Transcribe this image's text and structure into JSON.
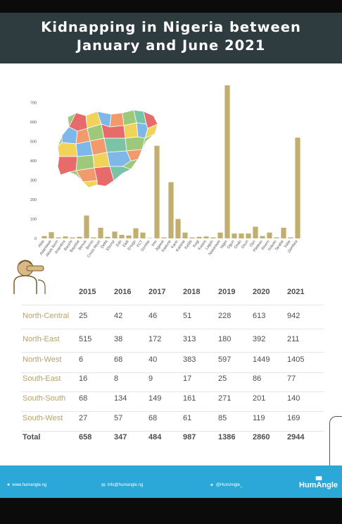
{
  "header": {
    "title_line1": "Kidnapping in Nigeria between",
    "title_line2": "January and June 2021"
  },
  "colors": {
    "bar": "#c2ae6e",
    "header_bg": "#2e3c40",
    "footer_bg": "#2ba8d8",
    "row_label": "#b8a26a"
  },
  "chart_data": {
    "type": "bar",
    "title": "",
    "xlabel": "",
    "ylabel": "",
    "ylim": [
      0,
      750
    ],
    "yticks": [
      0,
      100,
      200,
      300,
      400,
      500,
      600,
      700
    ],
    "categories": [
      "Abia",
      "Adamawa",
      "Akwa Ibom",
      "Anambra",
      "Bauchi",
      "Bayelsa",
      "Benue",
      "Borno",
      "Cross River",
      "Delta",
      "Ebonyi",
      "Edo",
      "Ekiti",
      "Enugu",
      "FCT",
      "Gombe",
      "Imo",
      "Jigawa",
      "Kaduna",
      "Kano",
      "Katsina",
      "Kebbi",
      "Kogi",
      "Kwara",
      "Lagos",
      "Nasarawa",
      "Niger",
      "Ogun",
      "Ondo",
      "Osun",
      "Oyo",
      "Plateau",
      "Rivers",
      "Sokoto",
      "Taraba",
      "Yobe",
      "Zamfara"
    ],
    "values": [
      12,
      32,
      5,
      10,
      5,
      8,
      118,
      5,
      55,
      8,
      35,
      18,
      15,
      52,
      30,
      2,
      478,
      5,
      290,
      100,
      30,
      5,
      8,
      10,
      5,
      30,
      790,
      25,
      25,
      25,
      60,
      12,
      30,
      5,
      55,
      5,
      520
    ],
    "grid": false,
    "legend": "none"
  },
  "table": {
    "years": [
      "2015",
      "2016",
      "2017",
      "2018",
      "2019",
      "2020",
      "2021"
    ],
    "rows": [
      {
        "label": "North-Central",
        "values": [
          "25",
          "42",
          "46",
          "51",
          "228",
          "613",
          "942"
        ]
      },
      {
        "label": "North-East",
        "values": [
          "515",
          "38",
          "172",
          "313",
          "180",
          "392",
          "211"
        ]
      },
      {
        "label": "North-West",
        "values": [
          "6",
          "68",
          "40",
          "383",
          "597",
          "1449",
          "1405"
        ]
      },
      {
        "label": "South-East",
        "values": [
          "16",
          "8",
          "9",
          "17",
          "25",
          "86",
          "77"
        ]
      },
      {
        "label": "South-South",
        "values": [
          "68",
          "134",
          "149",
          "161",
          "271",
          "201",
          "140"
        ]
      },
      {
        "label": "South-West",
        "values": [
          "27",
          "57",
          "68",
          "61",
          "85",
          "119",
          "169"
        ]
      }
    ],
    "total": {
      "label": "Total",
      "values": [
        "658",
        "347",
        "484",
        "987",
        "1386",
        "2860",
        "2944"
      ]
    }
  },
  "footer": {
    "website": "www.humangle.ng",
    "email": "info@humangle.ng",
    "twitter": "@HumAngle_",
    "brand": "HumAngle",
    "icons": [
      "globe-icon",
      "mail-icon",
      "twitter-icon",
      "signal-bars-icon"
    ]
  }
}
